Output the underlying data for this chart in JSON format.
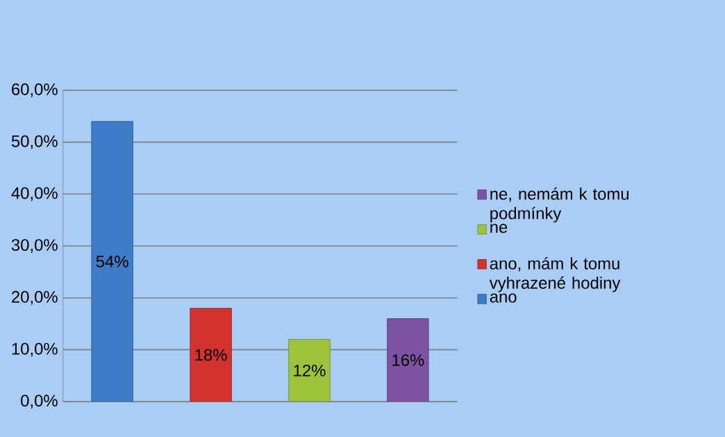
{
  "chart_data": {
    "type": "bar",
    "categories": [
      null,
      null,
      null,
      null
    ],
    "series": [
      {
        "name": "ano",
        "color": "#3f7cc8",
        "values": [
          54,
          null,
          null,
          null
        ],
        "value_labels": [
          "54%",
          null,
          null,
          null
        ]
      },
      {
        "name": "ano, mám k tomu vyhrazené hodiny",
        "color": "#d2332e",
        "values": [
          null,
          18,
          null,
          null
        ],
        "value_labels": [
          null,
          "18%",
          null,
          null
        ]
      },
      {
        "name": "ne",
        "color": "#9dc33a",
        "values": [
          null,
          null,
          12,
          null
        ],
        "value_labels": [
          null,
          null,
          "12%",
          null
        ]
      },
      {
        "name": "ne, nemám k tomu podmínky",
        "color": "#7e52a3",
        "values": [
          null,
          null,
          null,
          16
        ],
        "value_labels": [
          null,
          null,
          null,
          "16%"
        ]
      }
    ],
    "ylim": [
      0,
      60
    ],
    "yticks": [
      {
        "value": 0,
        "label": "0,0%"
      },
      {
        "value": 10,
        "label": "10,0%"
      },
      {
        "value": 20,
        "label": "20,0%"
      },
      {
        "value": 30,
        "label": "30,0%"
      },
      {
        "value": 40,
        "label": "40,0%"
      },
      {
        "value": 50,
        "label": "50,0%"
      },
      {
        "value": 60,
        "label": "60,0%"
      }
    ],
    "grid": "y",
    "legend": "right"
  }
}
